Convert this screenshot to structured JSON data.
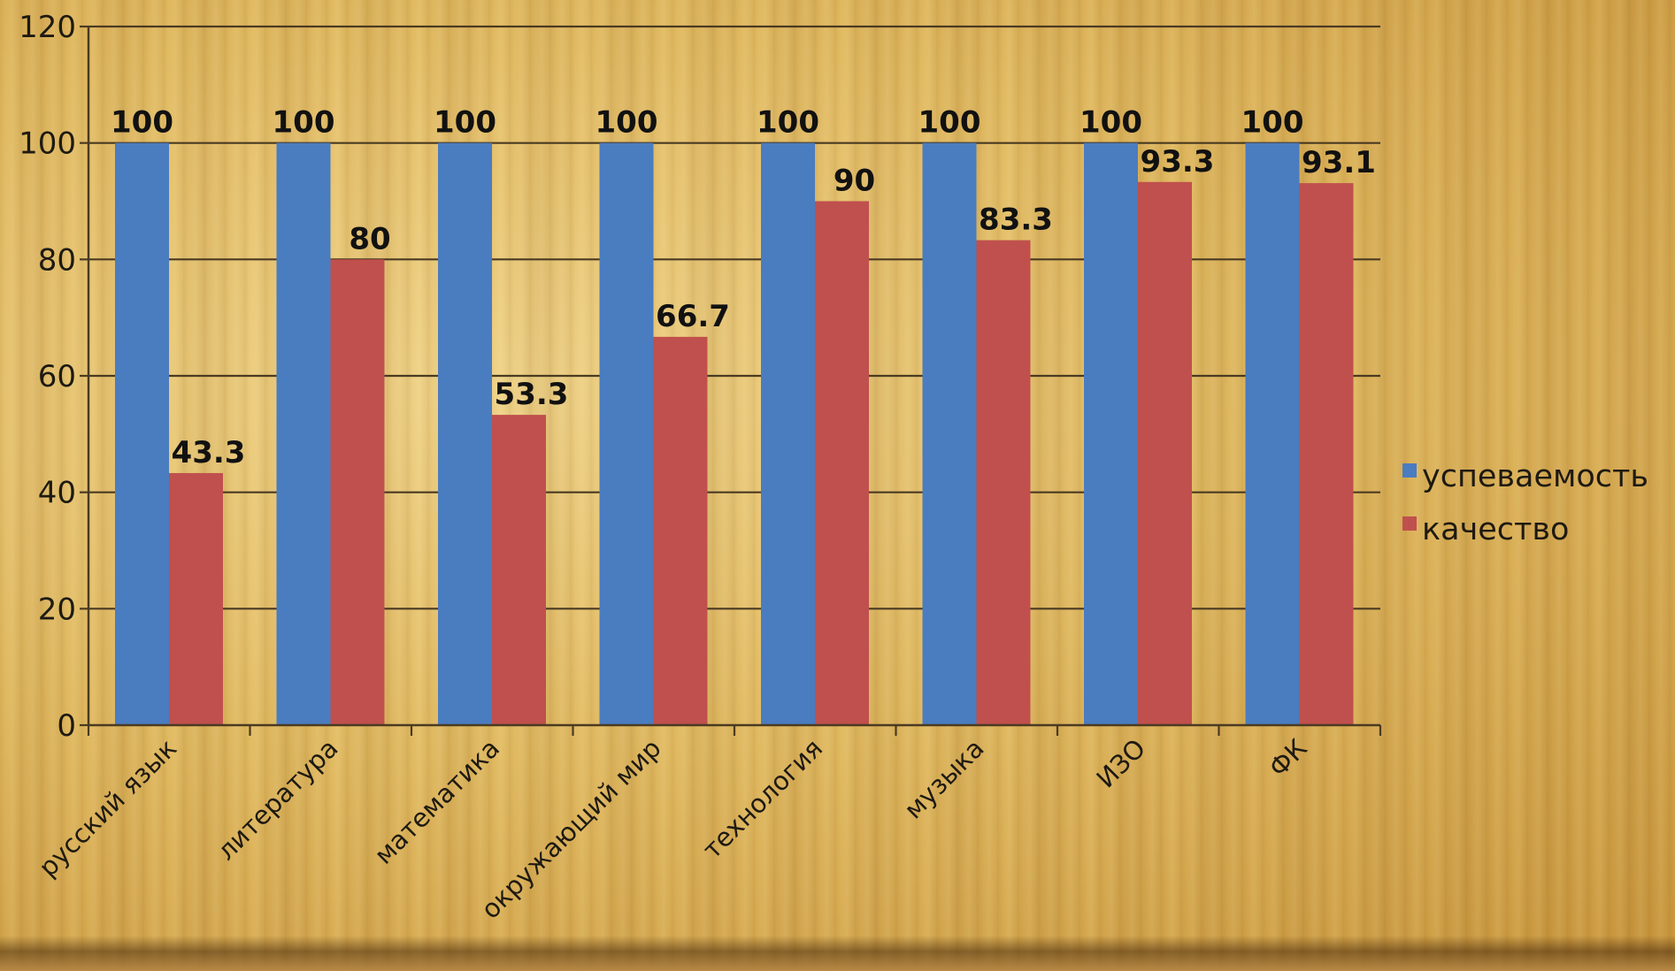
{
  "chart_data": {
    "type": "bar",
    "categories": [
      "русский язык",
      "литература",
      "математика",
      "окружающий мир",
      "технология",
      "музыка",
      "ИЗО",
      "ФК"
    ],
    "series": [
      {
        "name": "успеваемость",
        "color": "#4a7cc0",
        "values": [
          100,
          100,
          100,
          100,
          100,
          100,
          100,
          100
        ]
      },
      {
        "name": "качество",
        "color": "#c0504d",
        "values": [
          43.3,
          80,
          53.3,
          66.7,
          90,
          83.3,
          93.3,
          93.1
        ]
      }
    ],
    "ylim": [
      0,
      120
    ],
    "yticks": [
      0,
      20,
      40,
      60,
      80,
      100,
      120
    ],
    "grid": true,
    "legend_position": "right",
    "data_labels": true
  }
}
